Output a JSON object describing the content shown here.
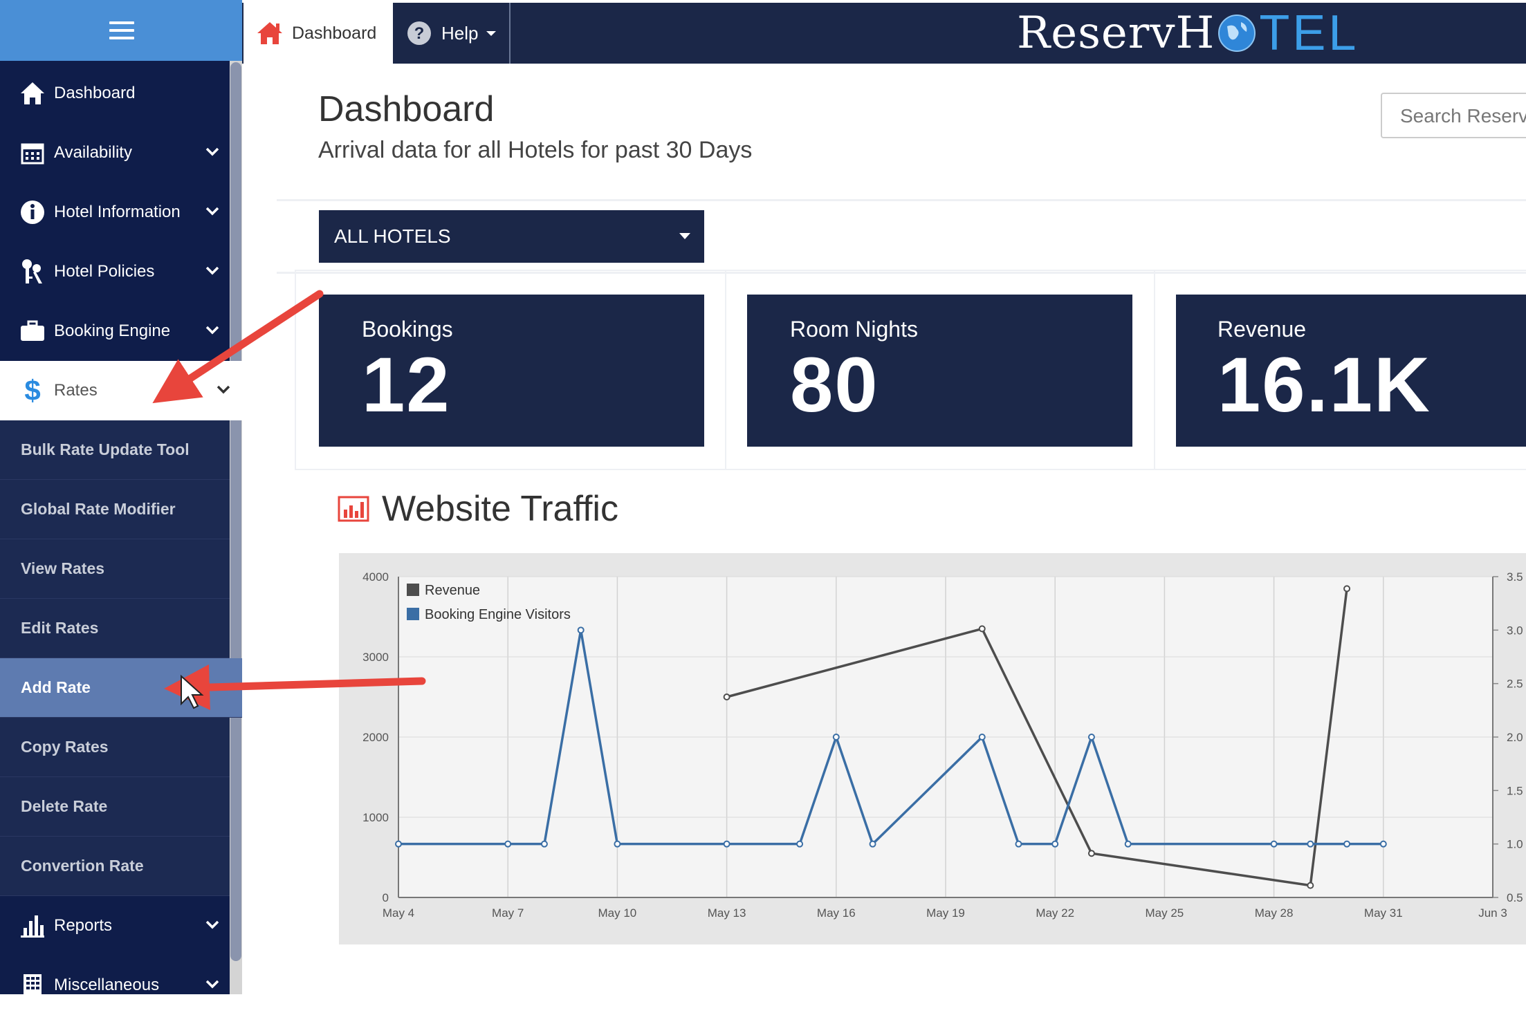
{
  "sidebar": {
    "menu_items": [
      {
        "label": "Dashboard",
        "icon": "home-icon"
      },
      {
        "label": "Availability",
        "icon": "calendar-icon"
      },
      {
        "label": "Hotel Information",
        "icon": "info-icon"
      },
      {
        "label": "Hotel Policies",
        "icon": "keys-icon"
      },
      {
        "label": "Booking Engine",
        "icon": "briefcase-icon"
      },
      {
        "label": "Rates",
        "icon": "dollar-icon"
      }
    ],
    "rates_submenu": [
      "Bulk Rate Update Tool",
      "Global Rate Modifier",
      "View Rates",
      "Edit Rates",
      "Add Rate",
      "Copy Rates",
      "Delete Rate",
      "Convertion Rate"
    ],
    "bottom_items": [
      {
        "label": "Reports",
        "icon": "bar-chart-icon"
      },
      {
        "label": "Miscellaneous",
        "icon": "building-icon"
      }
    ]
  },
  "topbar": {
    "dashboard_tab": "Dashboard",
    "help_tab": "Help",
    "brand_part1": "ReservH",
    "brand_part2": "TEL"
  },
  "main": {
    "title": "Dashboard",
    "subtitle": "Arrival data for all Hotels for past 30 Days",
    "search_placeholder": "Search Reservations",
    "hotel_select": "ALL HOTELS",
    "stats": [
      {
        "label": "Bookings",
        "value": "12"
      },
      {
        "label": "Room Nights",
        "value": "80"
      },
      {
        "label": "Revenue",
        "value": "16.1K"
      }
    ],
    "traffic_title": "Website Traffic"
  },
  "colors": {
    "sidebar": "#0f1d4a",
    "navy": "#1b2748",
    "accent": "#4a8fd6",
    "arrow": "#e8453c",
    "visitors_line": "#3a6ea5",
    "revenue_line": "#4d4d4d"
  },
  "chart_data": {
    "type": "line",
    "title": "Website Traffic",
    "x_ticks": [
      "May 4",
      "May 7",
      "May 10",
      "May 13",
      "May 16",
      "May 19",
      "May 22",
      "May 25",
      "May 28",
      "May 31",
      "Jun 3"
    ],
    "y_left_ticks": [
      "0",
      "1000",
      "2000",
      "3000",
      "4000"
    ],
    "y_left_range": [
      0,
      4000
    ],
    "y_right_ticks": [
      "0.5",
      "1.0",
      "1.5",
      "2.0",
      "2.5",
      "3.0",
      "3.5"
    ],
    "y_right_range": [
      0.5,
      3.5
    ],
    "grid": true,
    "legend_position": "top-left",
    "series": [
      {
        "name": "Revenue",
        "axis": "left",
        "color": "#4d4d4d",
        "x": [
          "May 13",
          "May 20",
          "May 23",
          "May 29",
          "May 30"
        ],
        "values": [
          2500,
          3350,
          550,
          150,
          3850
        ]
      },
      {
        "name": "Booking Engine Visitors",
        "axis": "right",
        "color": "#3a6ea5",
        "x": [
          "May 4",
          "May 7",
          "May 8",
          "May 9",
          "May 10",
          "May 13",
          "May 15",
          "May 16",
          "May 17",
          "May 20",
          "May 21",
          "May 22",
          "May 23",
          "May 24",
          "May 28",
          "May 29",
          "May 30",
          "May 31"
        ],
        "values": [
          1.0,
          1.0,
          1.0,
          3.0,
          1.0,
          1.0,
          1.0,
          2.0,
          1.0,
          2.0,
          1.0,
          1.0,
          2.0,
          1.0,
          1.0,
          1.0,
          1.0,
          1.0
        ]
      }
    ]
  }
}
